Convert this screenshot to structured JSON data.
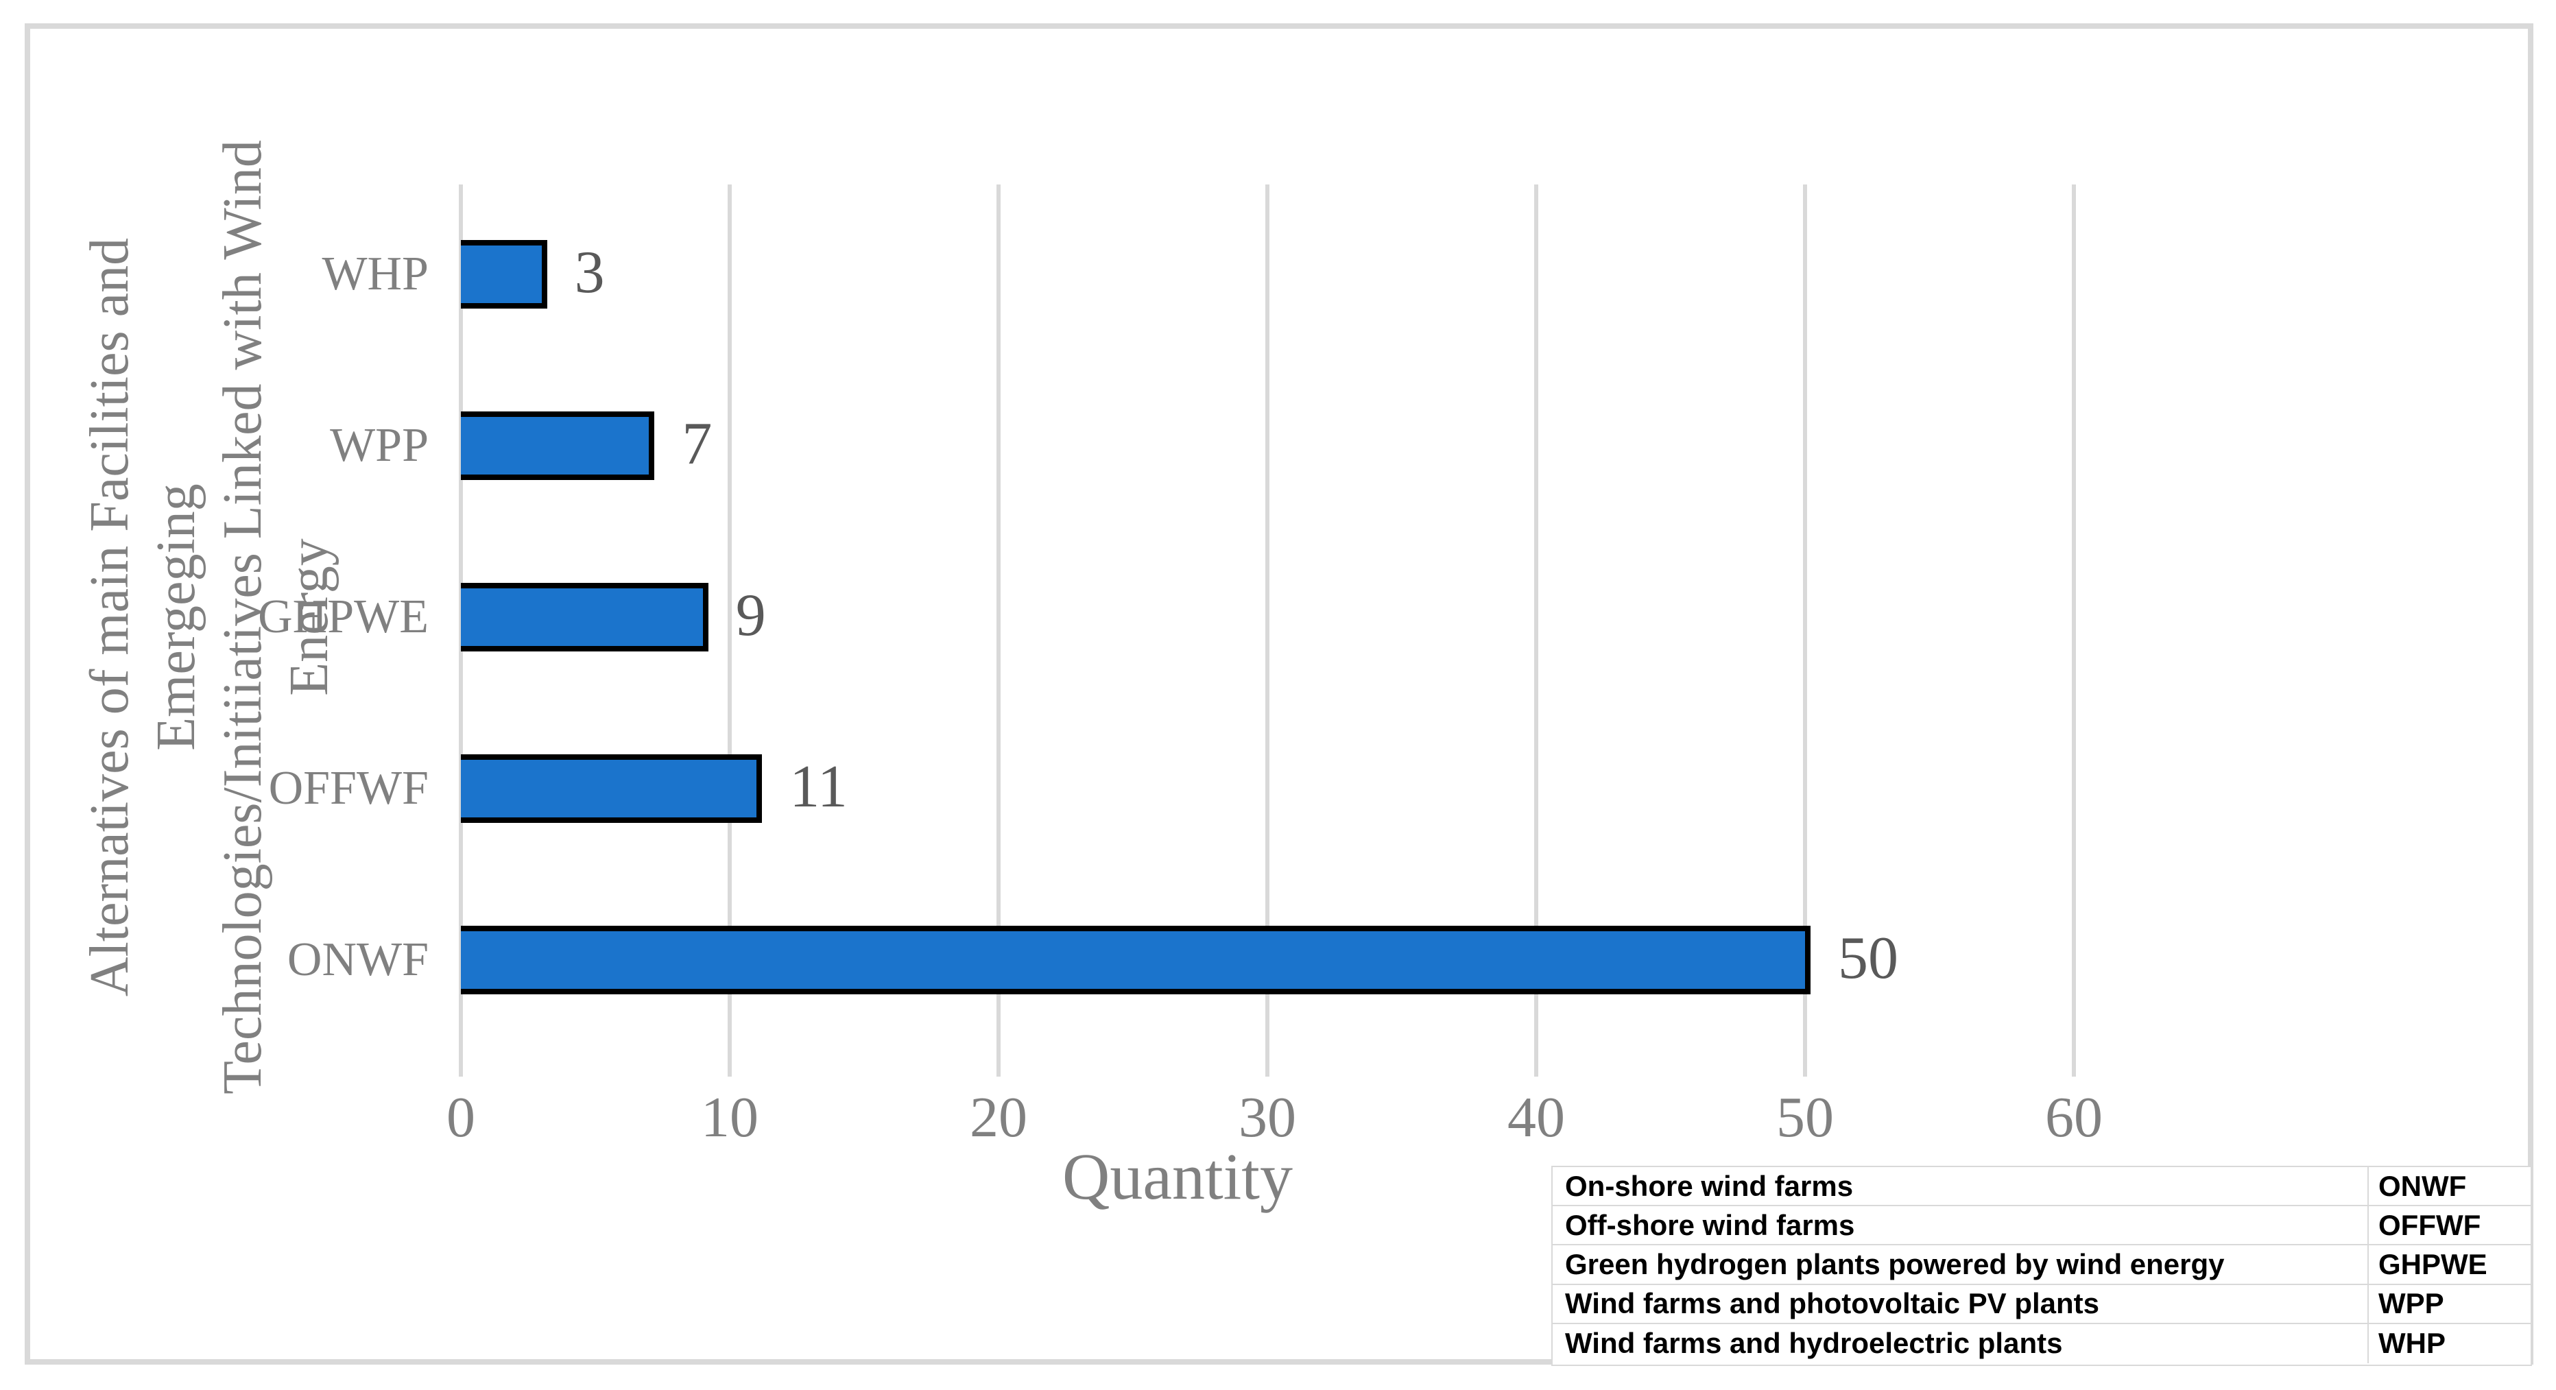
{
  "figure": {
    "background": "#FFFFFF",
    "frame_color": "#D9D9D9"
  },
  "chart_data": {
    "type": "bar",
    "orientation": "horizontal",
    "title": "",
    "xlabel": "Quantity",
    "ylabel_lines": [
      "Alternatives of main Facilities and Emergeging",
      "Technologies/Initiiatives Linked with Wind Energy"
    ],
    "categories_top_to_bottom": [
      "WHP",
      "WPP",
      "GHPWE",
      "OFFWF",
      "ONWF"
    ],
    "values_top_to_bottom": [
      3,
      7,
      9,
      11,
      50
    ],
    "x_ticks": [
      0,
      10,
      20,
      30,
      40,
      50,
      60
    ],
    "xlim": [
      0,
      62
    ],
    "grid": true,
    "legend_position": "none",
    "colors": {
      "bar_fill": "#1B74CC",
      "bar_border": "#000000",
      "gridline": "#D9D9D9",
      "tick_label": "#808080",
      "category_label": "#808080",
      "value_label": "#595959",
      "axis_title": "#808080"
    }
  },
  "legend_table": {
    "rows": [
      {
        "description": "On-shore wind farms",
        "abbr": "ONWF"
      },
      {
        "description": "Off-shore wind farms",
        "abbr": "OFFWF"
      },
      {
        "description": "Green hydrogen plants powered by wind energy",
        "abbr": "GHPWE"
      },
      {
        "description": "Wind farms and photovoltaic PV plants",
        "abbr": "WPP"
      },
      {
        "description": "Wind farms and hydroelectric plants",
        "abbr": "WHP"
      }
    ]
  }
}
